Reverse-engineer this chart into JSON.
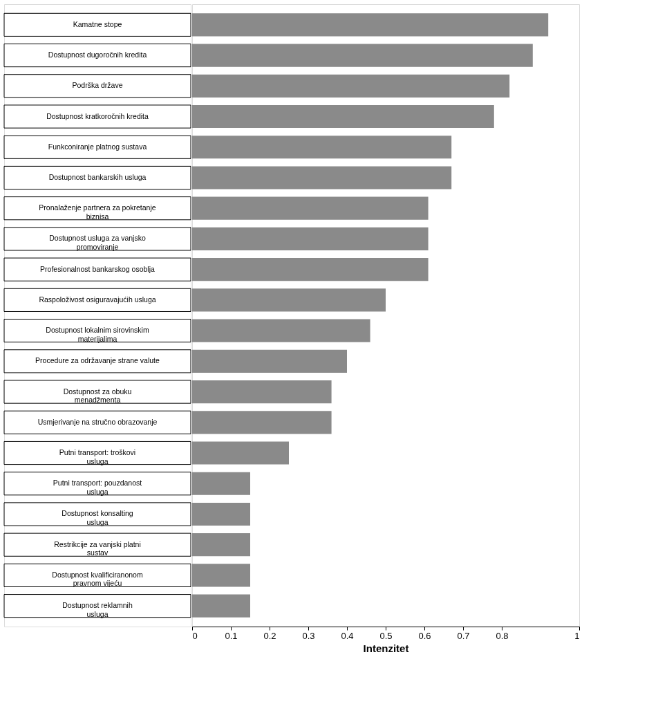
{
  "chart_data": {
    "type": "bar",
    "orientation": "horizontal",
    "xlabel": "Intenzitet",
    "categories": [
      "Kamatne stope",
      "Dostupnost dugoročnih kredita",
      "Podrška države",
      "Dostupnost kratkoročnih kredita",
      "Funkconiranje platnog sustava",
      "Dostupnost bankarskih usluga",
      "Pronalaženje partnera za pokretanje\nbiznisa",
      "Dostupnost usluga za vanjsko\npromoviranje",
      "Profesionalnost bankarskog osoblja",
      "Raspoloživost osiguravajućih usluga",
      "Dostupnost lokalnim sirovinskim\nmaterijalima",
      "Procedure za održavanje strane valute",
      "Dostupnost za obuku\nmenadžmenta",
      "Usmjerivanje na stručno obrazovanje",
      "Putni transport: troškovi\nusluga",
      "Putni transport: pouzdanost\nusluga",
      "Dostupnost konsalting\nusluga",
      "Restrikcije za vanjski platni\nsustav",
      "Dostupnost kvalificiranonom\npravnom vijeću",
      "Dostupnost reklamnih\nusluga"
    ],
    "values": [
      0.92,
      0.88,
      0.82,
      0.78,
      0.67,
      0.67,
      0.61,
      0.61,
      0.61,
      0.5,
      0.46,
      0.4,
      0.36,
      0.36,
      0.25,
      0.15,
      0.15,
      0.15,
      0.15,
      0.15
    ],
    "color": "#8a8a8a",
    "xlim": [
      0,
      1
    ],
    "xticks": [
      0,
      0.1,
      0.2,
      0.3,
      0.4,
      0.5,
      0.6,
      0.7,
      0.8,
      1
    ],
    "grid": false
  }
}
